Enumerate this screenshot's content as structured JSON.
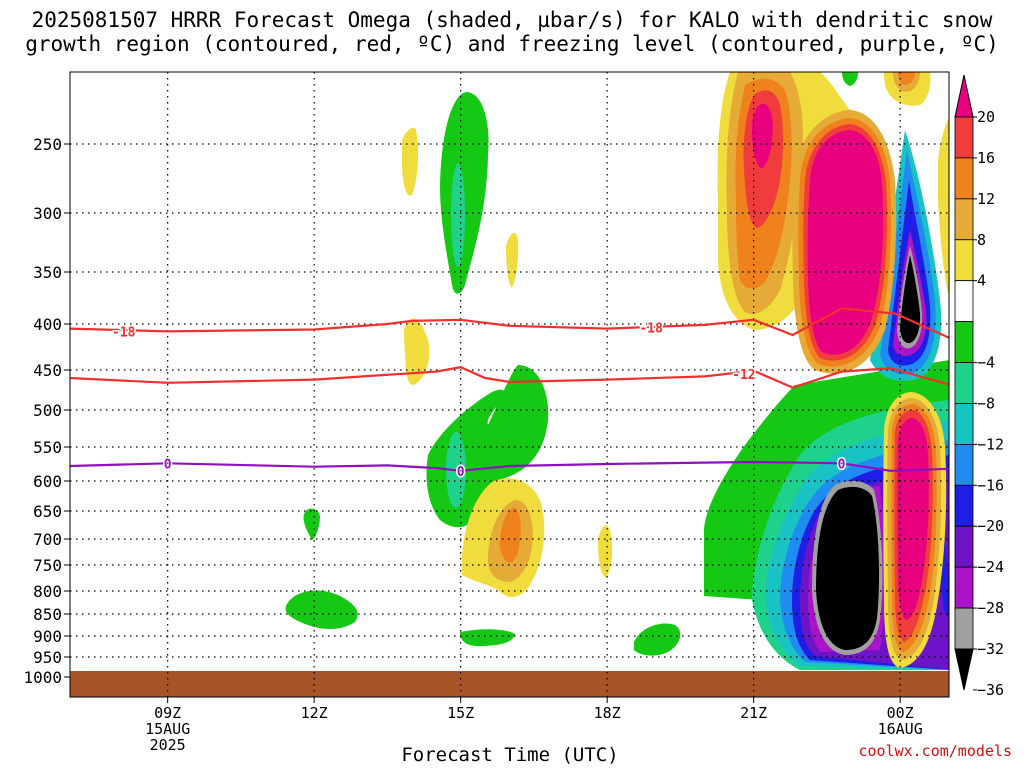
{
  "title": {
    "line1": "2025081507 HRRR Forecast Omega (shaded, µbar/s) for KALO with dendritic snow",
    "line2": "growth region (contoured, red, ºC) and freezing level (contoured, purple, ºC)"
  },
  "credit": "coolwx.com/models",
  "chart_data": {
    "type": "time-height cross section",
    "xlabel": "Forecast Time (UTC)",
    "ylabel": "",
    "x_range_hours": [
      7,
      25
    ],
    "y_range_hPa": [
      1000,
      200
    ],
    "y_ticks": [
      250,
      300,
      350,
      400,
      450,
      500,
      550,
      600,
      650,
      700,
      750,
      800,
      850,
      900,
      950,
      1000
    ],
    "x_ticks": [
      {
        "hour": 9,
        "lines": [
          "09Z",
          "15AUG",
          "2025"
        ]
      },
      {
        "hour": 12,
        "lines": [
          "12Z"
        ]
      },
      {
        "hour": 15,
        "lines": [
          "15Z"
        ]
      },
      {
        "hour": 18,
        "lines": [
          "18Z"
        ]
      },
      {
        "hour": 21,
        "lines": [
          "21Z"
        ]
      },
      {
        "hour": 24,
        "lines": [
          "00Z",
          "16AUG"
        ]
      }
    ],
    "grid": "dotted",
    "colorbar": {
      "units": "µbar/s",
      "levels": [
        "20",
        "16",
        "12",
        "8",
        "4",
        "−4",
        "−8",
        "−12",
        "−16",
        "−20",
        "−24",
        "−28",
        "−32",
        "−36"
      ],
      "colors": [
        "#e8007e",
        "#f03c3c",
        "#f0821e",
        "#e6aa37",
        "#f0dc3c",
        "#ffffff",
        "#14c814",
        "#1ed28c",
        "#19c3c3",
        "#1e8cf0",
        "#1e1ee6",
        "#6e14c8",
        "#aa14c8",
        "#a0a0a0",
        "#000000"
      ]
    },
    "contours": [
      {
        "label": "-18",
        "color": "#ee3030",
        "points": [
          [
            7,
            405
          ],
          [
            9,
            408
          ],
          [
            12,
            406
          ],
          [
            13.5,
            400
          ],
          [
            14,
            397
          ],
          [
            15,
            396
          ],
          [
            16,
            402
          ],
          [
            18,
            405
          ],
          [
            20,
            401
          ],
          [
            21,
            396
          ],
          [
            21.8,
            412
          ],
          [
            22.8,
            385
          ],
          [
            23.9,
            390
          ],
          [
            25,
            415
          ]
        ],
        "label_at": [
          [
            8.1,
            408
          ],
          [
            18.9,
            404
          ]
        ]
      },
      {
        "label": "-12",
        "color": "#ee3030",
        "points": [
          [
            7,
            460
          ],
          [
            9,
            466
          ],
          [
            12,
            462
          ],
          [
            13.5,
            456
          ],
          [
            14.5,
            452
          ],
          [
            15,
            447
          ],
          [
            15.5,
            460
          ],
          [
            16,
            465
          ],
          [
            18,
            462
          ],
          [
            20,
            458
          ],
          [
            21,
            451
          ],
          [
            21.8,
            472
          ],
          [
            22.8,
            452
          ],
          [
            23.8,
            448
          ],
          [
            25,
            468
          ]
        ],
        "label_at": [
          [
            20.8,
            455
          ]
        ]
      },
      {
        "label": "0",
        "color": "#9010c0",
        "points": [
          [
            7,
            578
          ],
          [
            9,
            574
          ],
          [
            12,
            579
          ],
          [
            13.5,
            577
          ],
          [
            14.5,
            581
          ],
          [
            15,
            585
          ],
          [
            16,
            578
          ],
          [
            18,
            575
          ],
          [
            20,
            573
          ],
          [
            21,
            572
          ],
          [
            22,
            573
          ],
          [
            22.8,
            574
          ],
          [
            23.8,
            585
          ],
          [
            25,
            582
          ]
        ],
        "label_at": [
          [
            9,
            574
          ],
          [
            15,
            585
          ],
          [
            22.8,
            574
          ]
        ]
      }
    ]
  }
}
